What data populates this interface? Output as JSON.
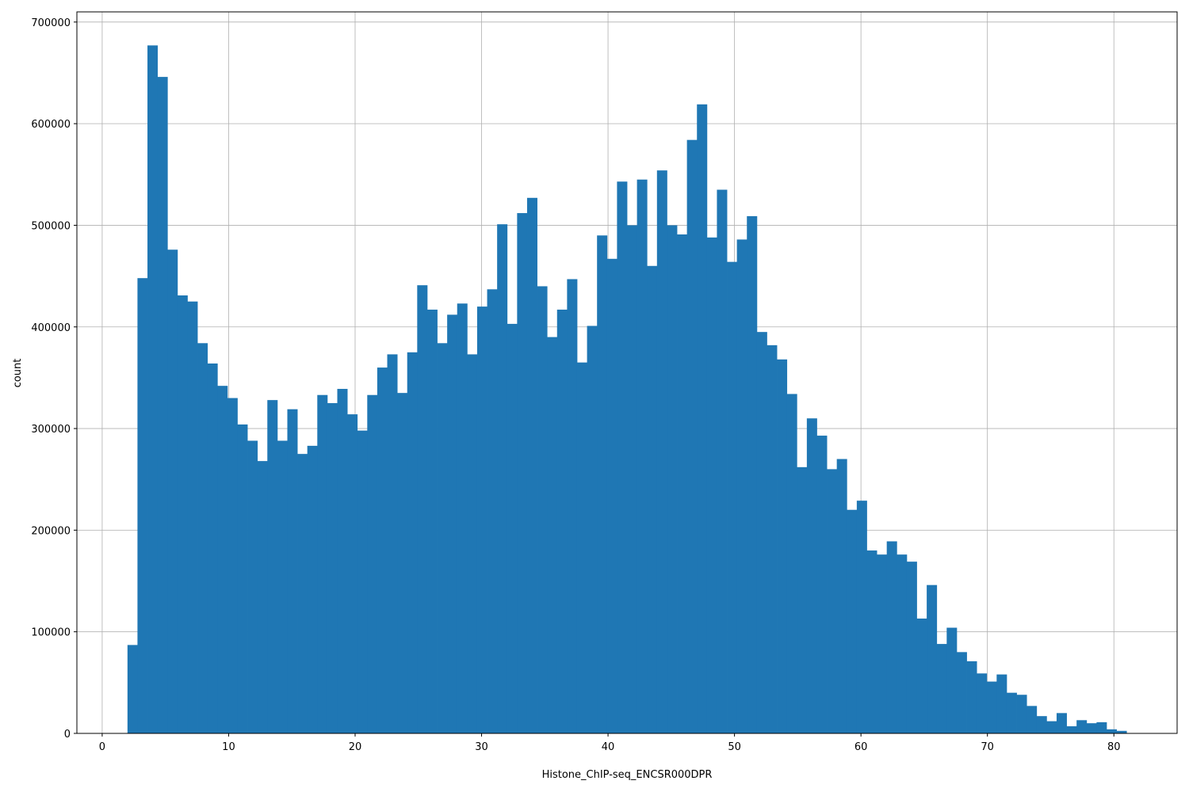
{
  "chart_data": {
    "type": "bar",
    "title": "",
    "xlabel": "Histone_ChIP-seq_ENCSR000DPR",
    "ylabel": "count",
    "xlim": [
      -2,
      85
    ],
    "ylim": [
      0,
      710000
    ],
    "xticks": [
      0,
      10,
      20,
      30,
      40,
      50,
      60,
      70,
      80
    ],
    "yticks": [
      0,
      100000,
      200000,
      300000,
      400000,
      500000,
      600000,
      700000
    ],
    "grid": true,
    "bar_color": "#1f77b4",
    "bin_start": 2.0,
    "bin_width": 0.79,
    "values": [
      87000,
      448000,
      677000,
      646000,
      476000,
      431000,
      425000,
      384000,
      364000,
      342000,
      330000,
      304000,
      288000,
      268000,
      328000,
      288000,
      319000,
      275000,
      283000,
      333000,
      325000,
      339000,
      314000,
      298000,
      333000,
      360000,
      373000,
      335000,
      375000,
      441000,
      417000,
      384000,
      412000,
      423000,
      373000,
      420000,
      437000,
      501000,
      403000,
      512000,
      527000,
      440000,
      390000,
      417000,
      447000,
      365000,
      401000,
      490000,
      467000,
      543000,
      500000,
      545000,
      460000,
      554000,
      500000,
      491000,
      584000,
      619000,
      488000,
      535000,
      464000,
      486000,
      509000,
      395000,
      382000,
      368000,
      334000,
      262000,
      310000,
      293000,
      260000,
      270000,
      220000,
      229000,
      180000,
      176000,
      189000,
      176000,
      169000,
      113000,
      146000,
      88000,
      104000,
      80000,
      71000,
      59000,
      51000,
      58000,
      40000,
      38000,
      27000,
      17000,
      12000,
      20000,
      7000,
      13000,
      10000,
      11000,
      4000,
      2500
    ]
  }
}
